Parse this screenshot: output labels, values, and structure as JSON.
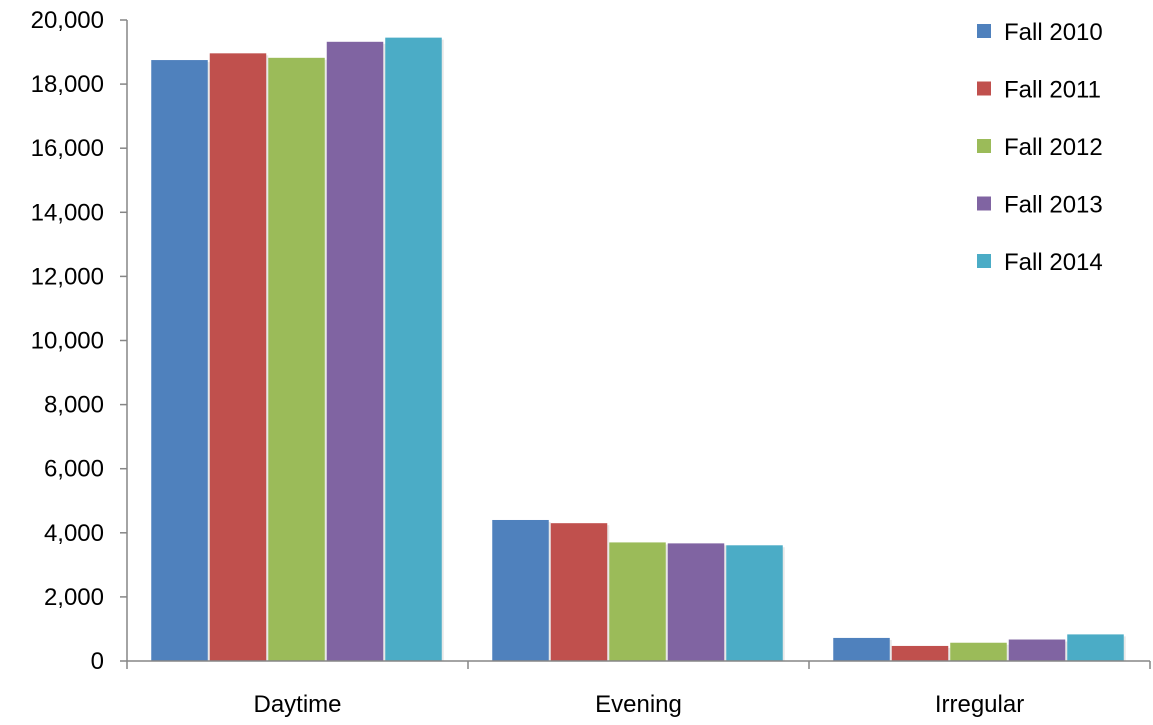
{
  "chart_data": {
    "type": "bar",
    "title": "",
    "xlabel": "",
    "ylabel": "",
    "categories": [
      "Daytime",
      "Evening",
      "Irregular"
    ],
    "series": [
      {
        "name": "Fall 2010",
        "color": "#4F81BD",
        "values": [
          18750,
          4400,
          720
        ]
      },
      {
        "name": "Fall 2011",
        "color": "#C0504D",
        "values": [
          18960,
          4300,
          470
        ]
      },
      {
        "name": "Fall 2012",
        "color": "#9BBB59",
        "values": [
          18820,
          3700,
          570
        ]
      },
      {
        "name": "Fall 2013",
        "color": "#8064A2",
        "values": [
          19320,
          3670,
          670
        ]
      },
      {
        "name": "Fall 2014",
        "color": "#4BACC6",
        "values": [
          19450,
          3610,
          830
        ]
      }
    ],
    "ylim": [
      0,
      20000
    ],
    "yticks": [
      "0",
      "2,000",
      "4,000",
      "6,000",
      "8,000",
      "10,000",
      "12,000",
      "14,000",
      "16,000",
      "18,000",
      "20,000"
    ],
    "grid": false,
    "legend_position": "top-right"
  }
}
